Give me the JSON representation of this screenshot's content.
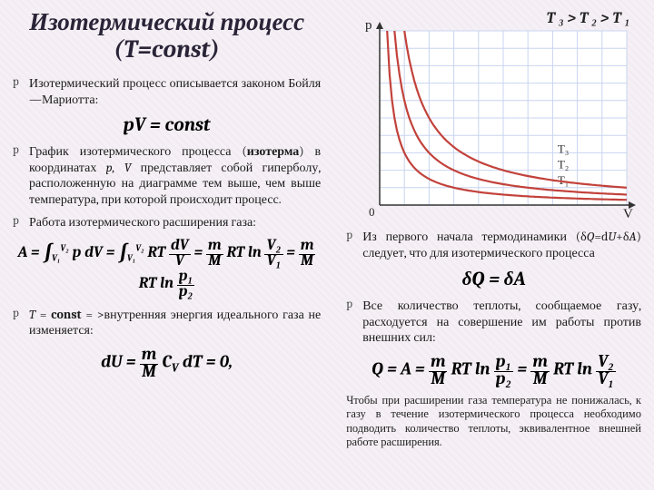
{
  "title": "Изотермический процесс (T=const)",
  "left_bullets": [
    {
      "text": "Изотермический процесс описывается законом Бойля—Мариотта:"
    },
    {
      "text": "График изотермического процесса (<b>изотерма</b>) в координатах <i>p, V</i> представляет собой гиперболу, расположенную на диаграмме тем выше, чем выше температура, при которой происходит процесс."
    },
    {
      "text": "Работа изотермического расширения газа:"
    },
    {
      "text": "<i>T</i> = <b>const</b> = >внутренняя энергия идеального газа не изменяется:"
    }
  ],
  "formulas": {
    "f1": "pV = const",
    "f2": "",
    "f3": "",
    "f4": "δQ = δA",
    "f5": ""
  },
  "chart": {
    "caption": "T ₃ > T ₂ > T ₁",
    "xlabel": "V",
    "ylabel": "p",
    "bg": "#ffffff",
    "grid_color": "#c8d4f0",
    "axis_color": "#333333",
    "curve_color": "#c2423b",
    "curve_width": 2.2,
    "xlim": [
      0,
      10
    ],
    "ylim": [
      0,
      10
    ],
    "grid_step": 1,
    "curves": [
      {
        "k": 3.0,
        "label": "T₁",
        "lx": 7.2,
        "ly": 1.2
      },
      {
        "k": 6.0,
        "label": "T₂",
        "lx": 7.2,
        "ly": 2.1
      },
      {
        "k": 10.0,
        "label": "T₃",
        "lx": 7.2,
        "ly": 3.0
      }
    ],
    "label_fontsize": 13
  },
  "right_bullets": [
    {
      "text": "Из первого начала термодинамики (δ<i>Q</i>=d<i>U</i>+δ<i>A</i>) следует, что для изотермического процесса"
    },
    {
      "text": "Все количество теплоты, сообщаемое газу, расходуется на совершение им работы против внешних сил:"
    }
  ],
  "note": "Чтобы при расширении газа температура не понижалась, к газу в течение изотермического процесса необходимо подводить количество теплоты, эквивалентное внешней работе расширения."
}
